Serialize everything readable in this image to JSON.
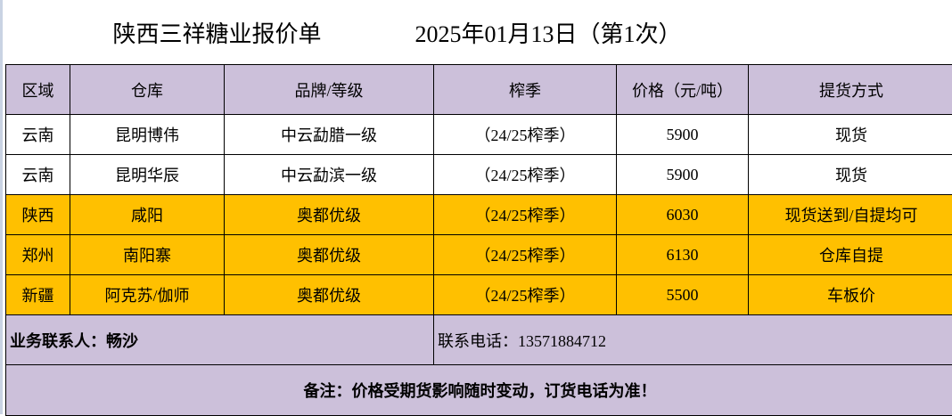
{
  "title": "陕西三祥糖业报价单",
  "date": "2025年01月13日（第1次）",
  "headers": [
    "区域",
    "仓库",
    "品牌/等级",
    "榨季",
    "价格（元/吨）",
    "提货方式"
  ],
  "rows": [
    {
      "region": "云南",
      "warehouse": "昆明博伟",
      "brand": "中云勐腊一级",
      "season": "（24/25榨季）",
      "price": "5900",
      "delivery": "现货",
      "highlight": false
    },
    {
      "region": "云南",
      "warehouse": "昆明华辰",
      "brand": "中云勐滨一级",
      "season": "（24/25榨季）",
      "price": "5900",
      "delivery": "现货",
      "highlight": false
    },
    {
      "region": "陕西",
      "warehouse": "咸阳",
      "brand": "奥都优级",
      "season": "（24/25榨季）",
      "price": "6030",
      "delivery": "现货送到/自提均可",
      "highlight": true
    },
    {
      "region": "郑州",
      "warehouse": "南阳寨",
      "brand": "奥都优级",
      "season": "（24/25榨季）",
      "price": "6130",
      "delivery": "仓库自提",
      "highlight": true
    },
    {
      "region": "新疆",
      "warehouse": "阿克苏/伽师",
      "brand": "奥都优级",
      "season": "（24/25榨季）",
      "price": "5500",
      "delivery": "车板价",
      "highlight": true
    }
  ],
  "contact": {
    "person": "业务联系人：畅沙",
    "phone": "联系电话：13571884712"
  },
  "note": "备注：价格受期货影响随时变动，订货电话为准！",
  "colors": {
    "header_bg": "#ccc0da",
    "highlight_bg": "#ffc000"
  }
}
